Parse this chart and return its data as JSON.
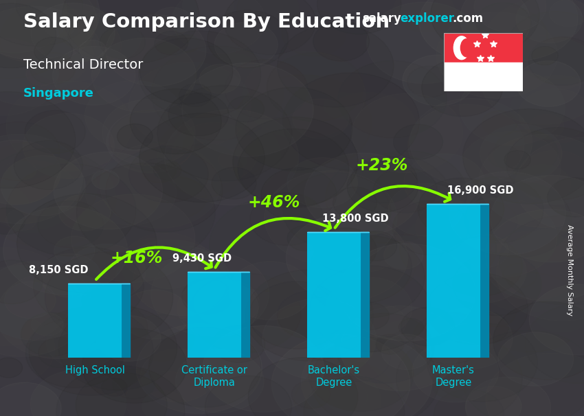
{
  "title": "Salary Comparison By Education",
  "subtitle": "Technical Director",
  "location": "Singapore",
  "ylabel": "Average Monthly Salary",
  "website_part1": "salary",
  "website_part2": "explorer",
  "website_part3": ".com",
  "categories": [
    "High School",
    "Certificate or\nDiploma",
    "Bachelor's\nDegree",
    "Master's\nDegree"
  ],
  "values": [
    8150,
    9430,
    13800,
    16900
  ],
  "labels": [
    "8,150 SGD",
    "9,430 SGD",
    "13,800 SGD",
    "16,900 SGD"
  ],
  "pct_labels": [
    "+16%",
    "+46%",
    "+23%"
  ],
  "bar_face_color": "#00C8F0",
  "bar_side_color": "#0088B0",
  "bar_top_color": "#55DDFF",
  "bg_color": "#404050",
  "title_color": "#FFFFFF",
  "subtitle_color": "#FFFFFF",
  "location_color": "#00CCDD",
  "label_color": "#FFFFFF",
  "pct_color": "#88FF00",
  "arrow_color": "#88FF00",
  "website_color1": "#FFFFFF",
  "website_color2": "#00CCDD",
  "xtick_color": "#00CCDD",
  "bar_width": 0.45,
  "side_depth": 0.07,
  "ylim": [
    0,
    21000
  ],
  "xlim": [
    -0.55,
    3.75
  ]
}
